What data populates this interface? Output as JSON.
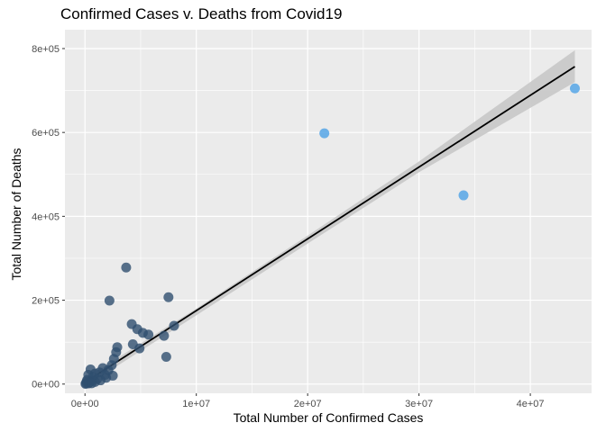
{
  "chart_data": {
    "type": "scatter",
    "title": "Confirmed Cases v. Deaths from Covid19",
    "xlabel": "Total Number of Confirmed Cases",
    "ylabel": "Total Number of Deaths",
    "xlim": [
      -1800000,
      45500000
    ],
    "ylim": [
      -22000,
      845000
    ],
    "x_ticks": [
      {
        "value": 0,
        "label": "0e+00"
      },
      {
        "value": 10000000,
        "label": "1e+07"
      },
      {
        "value": 20000000,
        "label": "2e+07"
      },
      {
        "value": 30000000,
        "label": "3e+07"
      },
      {
        "value": 40000000,
        "label": "4e+07"
      }
    ],
    "y_ticks": [
      {
        "value": 0,
        "label": "0e+00"
      },
      {
        "value": 200000,
        "label": "2e+05"
      },
      {
        "value": 400000,
        "label": "4e+05"
      },
      {
        "value": 600000,
        "label": "6e+05"
      },
      {
        "value": 800000,
        "label": "8e+05"
      }
    ],
    "grid": true,
    "background_color": "#ebebeb",
    "grid_color": "#ffffff",
    "point_color": "#2f4f6f",
    "highlight_color": "#56a6e6",
    "points": [
      {
        "x": 21500000,
        "y": 598000,
        "highlight": true
      },
      {
        "x": 34000000,
        "y": 450000,
        "highlight": true
      },
      {
        "x": 44000000,
        "y": 705000,
        "highlight": true
      },
      {
        "x": 3700000,
        "y": 278000
      },
      {
        "x": 7500000,
        "y": 207000
      },
      {
        "x": 2200000,
        "y": 199000
      },
      {
        "x": 4200000,
        "y": 143000
      },
      {
        "x": 8000000,
        "y": 139000
      },
      {
        "x": 4700000,
        "y": 131000
      },
      {
        "x": 5200000,
        "y": 122000
      },
      {
        "x": 5700000,
        "y": 118000
      },
      {
        "x": 7100000,
        "y": 115000
      },
      {
        "x": 4300000,
        "y": 95000
      },
      {
        "x": 2900000,
        "y": 88000
      },
      {
        "x": 4900000,
        "y": 85000
      },
      {
        "x": 2800000,
        "y": 76000
      },
      {
        "x": 7300000,
        "y": 65000
      },
      {
        "x": 2600000,
        "y": 60000
      },
      {
        "x": 2400000,
        "y": 45000
      },
      {
        "x": 1600000,
        "y": 38000
      },
      {
        "x": 2100000,
        "y": 33000
      },
      {
        "x": 500000,
        "y": 35000
      },
      {
        "x": 1300000,
        "y": 28000
      },
      {
        "x": 900000,
        "y": 25000
      },
      {
        "x": 1800000,
        "y": 22000
      },
      {
        "x": 2500000,
        "y": 20000
      },
      {
        "x": 1900000,
        "y": 15000
      },
      {
        "x": 300000,
        "y": 22000
      },
      {
        "x": 700000,
        "y": 17000
      },
      {
        "x": 1100000,
        "y": 12000
      },
      {
        "x": 1400000,
        "y": 9000
      },
      {
        "x": 600000,
        "y": 8000
      },
      {
        "x": 900000,
        "y": 5000
      },
      {
        "x": 200000,
        "y": 10000
      },
      {
        "x": 400000,
        "y": 4000
      },
      {
        "x": 100000,
        "y": 2000
      },
      {
        "x": 300000,
        "y": 1500
      },
      {
        "x": 50000,
        "y": 500
      },
      {
        "x": 150000,
        "y": 6000
      },
      {
        "x": 600000,
        "y": 2000
      }
    ],
    "fit_line": {
      "type": "linear",
      "color": "#000000",
      "band_color": "#c8c8c8",
      "points": [
        [
          0,
          4000
        ],
        [
          44000000,
          757000
        ]
      ],
      "band": [
        {
          "x": 0,
          "lower": -6000,
          "upper": 14000
        },
        {
          "x": 10000000,
          "lower": 164000,
          "upper": 180000
        },
        {
          "x": 20000000,
          "lower": 335000,
          "upper": 354000
        },
        {
          "x": 30000000,
          "lower": 505000,
          "upper": 531000
        },
        {
          "x": 44000000,
          "lower": 720000,
          "upper": 796000
        }
      ]
    }
  }
}
